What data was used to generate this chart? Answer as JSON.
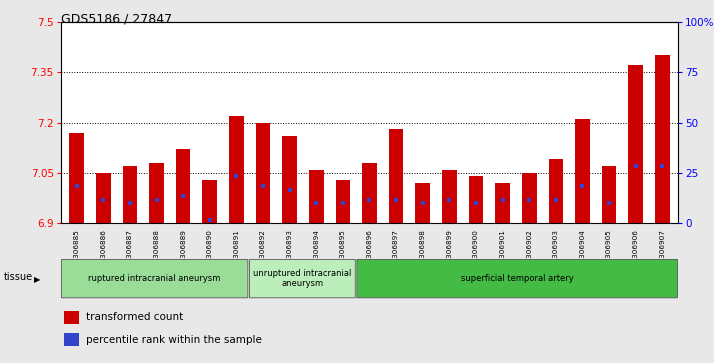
{
  "title": "GDS5186 / 27847",
  "samples": [
    "GSM1306885",
    "GSM1306886",
    "GSM1306887",
    "GSM1306888",
    "GSM1306889",
    "GSM1306890",
    "GSM1306891",
    "GSM1306892",
    "GSM1306893",
    "GSM1306894",
    "GSM1306895",
    "GSM1306896",
    "GSM1306897",
    "GSM1306898",
    "GSM1306899",
    "GSM1306900",
    "GSM1306901",
    "GSM1306902",
    "GSM1306903",
    "GSM1306904",
    "GSM1306905",
    "GSM1306906",
    "GSM1306907"
  ],
  "bar_values": [
    7.17,
    7.05,
    7.07,
    7.08,
    7.12,
    7.03,
    7.22,
    7.2,
    7.16,
    7.06,
    7.03,
    7.08,
    7.18,
    7.02,
    7.06,
    7.04,
    7.02,
    7.05,
    7.09,
    7.21,
    7.07,
    7.37,
    7.4
  ],
  "percentile_values": [
    7.01,
    6.97,
    6.96,
    6.97,
    6.98,
    6.91,
    7.04,
    7.01,
    7.0,
    6.96,
    6.96,
    6.97,
    6.97,
    6.96,
    6.97,
    6.96,
    6.97,
    6.97,
    6.97,
    7.01,
    6.96,
    7.07,
    7.07
  ],
  "ymin": 6.9,
  "ymax": 7.5,
  "yticks": [
    6.9,
    7.05,
    7.2,
    7.35,
    7.5
  ],
  "right_yticks": [
    0,
    25,
    50,
    75,
    100
  ],
  "bar_color": "#cc0000",
  "blue_color": "#3344cc",
  "bg_color": "#e8e8e8",
  "plot_bg": "#ffffff",
  "groups": [
    {
      "label": "ruptured intracranial aneurysm",
      "start": 0,
      "end": 7,
      "color": "#99dd99"
    },
    {
      "label": "unruptured intracranial\naneurysm",
      "start": 7,
      "end": 11,
      "color": "#bbeebb"
    },
    {
      "label": "superficial temporal artery",
      "start": 11,
      "end": 23,
      "color": "#44bb44"
    }
  ],
  "legend_items": [
    {
      "label": "transformed count",
      "color": "#cc0000"
    },
    {
      "label": "percentile rank within the sample",
      "color": "#3344cc"
    }
  ],
  "tissue_label": "tissue"
}
